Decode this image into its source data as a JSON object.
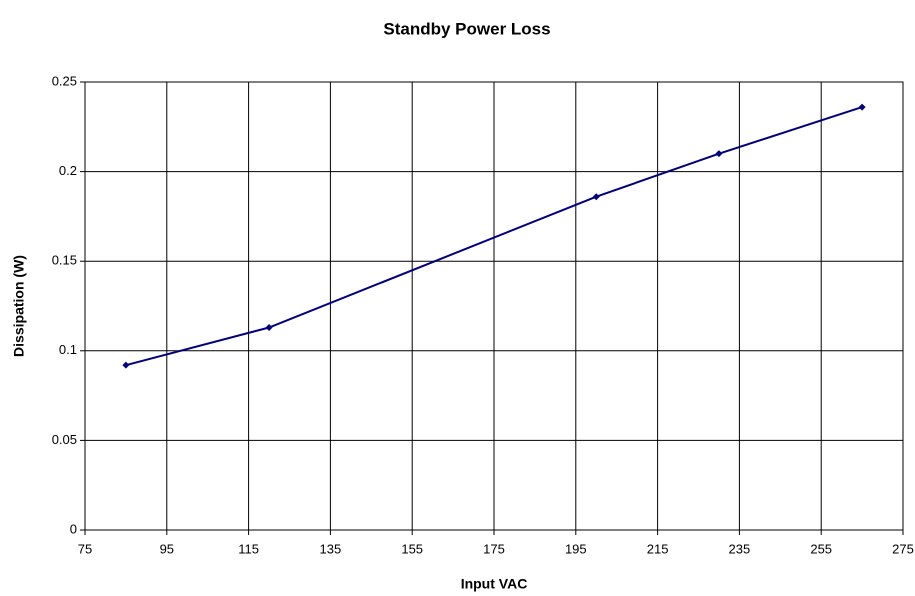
{
  "chart_data": {
    "type": "line",
    "title": "Standby Power Loss",
    "x_label": "Input VAC",
    "y_label": "Dissipation (W)",
    "x": [
      85,
      120,
      200,
      230,
      265
    ],
    "series": [
      {
        "name": "Dissipation",
        "color": "#000080",
        "values": [
          0.092,
          0.113,
          0.186,
          0.21,
          0.236
        ]
      }
    ],
    "xlim": [
      75,
      275
    ],
    "xticks": [
      75,
      95,
      115,
      135,
      155,
      175,
      195,
      215,
      235,
      255,
      275
    ],
    "ylim": [
      0,
      0.25
    ],
    "yticks": [
      0,
      0.05,
      0.1,
      0.15,
      0.2,
      0.25
    ],
    "grid": true
  }
}
